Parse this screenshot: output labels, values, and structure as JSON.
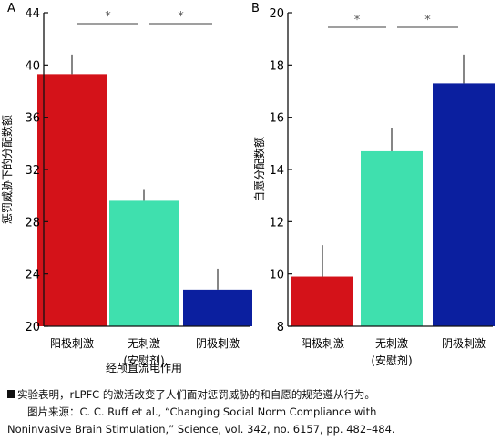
{
  "chart_data": [
    {
      "panel": "A",
      "type": "bar",
      "ylabel": "惩罚威胁下的分配数额",
      "xlabel": "经颅直流电作用",
      "ylim": [
        20,
        44
      ],
      "yticks": [
        20,
        24,
        28,
        32,
        36,
        40,
        44
      ],
      "categories": [
        [
          "阳极刺激"
        ],
        [
          "无刺激",
          "(安慰剂)"
        ],
        [
          "阴极刺激"
        ]
      ],
      "values": [
        39.3,
        29.6,
        22.8
      ],
      "errors": [
        1.5,
        0.9,
        1.6
      ],
      "colors": [
        "#d41219",
        "#3fe0ae",
        "#0b1f9f"
      ],
      "significance": [
        "*",
        "*"
      ]
    },
    {
      "panel": "B",
      "type": "bar",
      "ylabel": "自愿分配数额",
      "xlabel": "",
      "ylim": [
        8,
        20
      ],
      "yticks": [
        8,
        10,
        12,
        14,
        16,
        18,
        20
      ],
      "categories": [
        [
          "阳极刺激"
        ],
        [
          "无刺激",
          "(安慰剂)"
        ],
        [
          "阴极刺激"
        ]
      ],
      "values": [
        9.9,
        14.7,
        17.3
      ],
      "errors": [
        1.2,
        0.9,
        1.1
      ],
      "colors": [
        "#d41219",
        "#3fe0ae",
        "#0b1f9f"
      ],
      "significance": [
        "*",
        "*"
      ]
    }
  ],
  "caption": {
    "line1": "实验表明，rLPFC 的激活改变了人们面对惩罚威胁的和自愿的规范遵从行为。",
    "line2": "图片来源：C. C. Ruff et al., “Changing Social Norm Compliance with",
    "line3": "Noninvasive Brain Stimulation,” Science, vol. 342, no. 6157, pp. 482–484."
  }
}
